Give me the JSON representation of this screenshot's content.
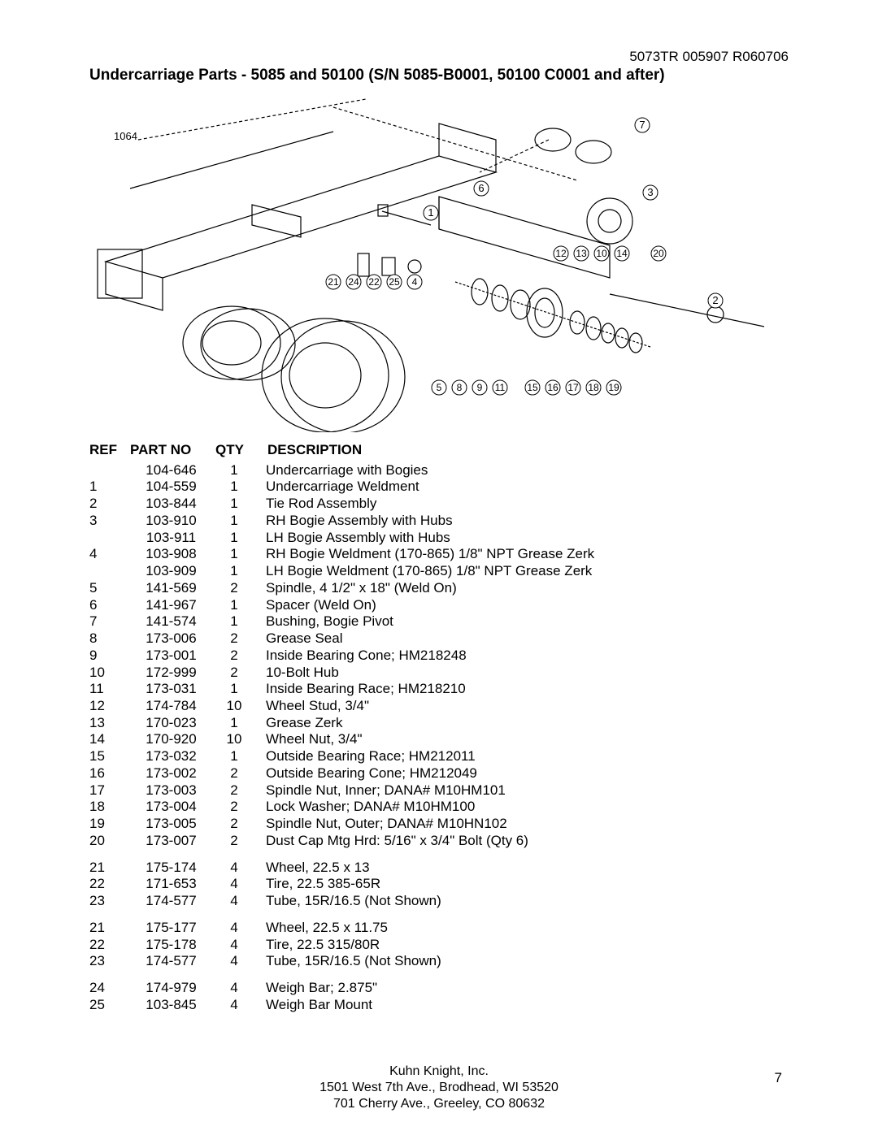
{
  "doc_code": "5073TR 005907 R060706",
  "title": "Undercarriage Parts -  5085 and 50100 (S/N 5085-B0001, 50100 C0001 and after)",
  "diagram_id": "1064",
  "headers": {
    "ref": "REF",
    "part": "PART NO",
    "qty": "QTY",
    "desc": "DESCRIPTION"
  },
  "groups": [
    [
      {
        "ref": "",
        "part": "104-646",
        "qty": "1",
        "desc": "Undercarriage  with Bogies"
      },
      {
        "ref": "1",
        "part": "104-559",
        "qty": "1",
        "desc": "Undercarriage Weldment"
      },
      {
        "ref": "2",
        "part": "103-844",
        "qty": "1",
        "desc": "Tie Rod Assembly"
      },
      {
        "ref": "3",
        "part": "103-910",
        "qty": "1",
        "desc": "RH Bogie Assembly with Hubs"
      },
      {
        "ref": "",
        "part": "103-911",
        "qty": "1",
        "desc": "LH Bogie Assembly with Hubs"
      },
      {
        "ref": "4",
        "part": "103-908",
        "qty": "1",
        "desc": "RH Bogie Weldment (170-865) 1/8\" NPT Grease Zerk"
      },
      {
        "ref": "",
        "part": "103-909",
        "qty": "1",
        "desc": "LH Bogie Weldment (170-865) 1/8\" NPT Grease Zerk"
      },
      {
        "ref": "5",
        "part": "141-569",
        "qty": "2",
        "desc": "Spindle, 4 1/2\" x 18\" (Weld On)"
      },
      {
        "ref": "6",
        "part": "141-967",
        "qty": "1",
        "desc": "Spacer (Weld On)"
      },
      {
        "ref": "7",
        "part": "141-574",
        "qty": "1",
        "desc": "Bushing, Bogie Pivot"
      },
      {
        "ref": "8",
        "part": "173-006",
        "qty": "2",
        "desc": "Grease Seal"
      },
      {
        "ref": "9",
        "part": "173-001",
        "qty": "2",
        "desc": "Inside Bearing Cone; HM218248"
      },
      {
        "ref": "10",
        "part": "172-999",
        "qty": "2",
        "desc": "10-Bolt Hub"
      },
      {
        "ref": "11",
        "part": "173-031",
        "qty": "1",
        "desc": "Inside Bearing Race; HM218210"
      },
      {
        "ref": "12",
        "part": "174-784",
        "qty": "10",
        "desc": "Wheel Stud, 3/4\""
      },
      {
        "ref": "13",
        "part": "170-023",
        "qty": "1",
        "desc": "Grease Zerk"
      },
      {
        "ref": "14",
        "part": "170-920",
        "qty": "10",
        "desc": "Wheel Nut, 3/4\""
      },
      {
        "ref": "15",
        "part": "173-032",
        "qty": "1",
        "desc": "Outside Bearing Race; HM212011"
      },
      {
        "ref": "16",
        "part": "173-002",
        "qty": "2",
        "desc": "Outside Bearing Cone; HM212049"
      },
      {
        "ref": "17",
        "part": "173-003",
        "qty": "2",
        "desc": "Spindle Nut, Inner; DANA# M10HM101"
      },
      {
        "ref": "18",
        "part": "173-004",
        "qty": "2",
        "desc": "Lock Washer; DANA# M10HM100"
      },
      {
        "ref": "19",
        "part": "173-005",
        "qty": "2",
        "desc": "Spindle Nut, Outer; DANA# M10HN102"
      },
      {
        "ref": "20",
        "part": "173-007",
        "qty": "2",
        "desc": "Dust Cap       Mtg Hrd: 5/16\" x 3/4\" Bolt (Qty 6)"
      }
    ],
    [
      {
        "ref": "21",
        "part": "175-174",
        "qty": "4",
        "desc": "Wheel, 22.5 x 13"
      },
      {
        "ref": "22",
        "part": "171-653",
        "qty": "4",
        "desc": "Tire, 22.5 385-65R"
      },
      {
        "ref": "23",
        "part": "174-577",
        "qty": "4",
        "desc": "Tube, 15R/16.5 (Not Shown)"
      }
    ],
    [
      {
        "ref": "21",
        "part": "175-177",
        "qty": "4",
        "desc": "Wheel, 22.5 x 11.75"
      },
      {
        "ref": "22",
        "part": "175-178",
        "qty": "4",
        "desc": "Tire, 22.5 315/80R"
      },
      {
        "ref": "23",
        "part": "174-577",
        "qty": "4",
        "desc": "Tube, 15R/16.5 (Not Shown)"
      }
    ],
    [
      {
        "ref": "24",
        "part": "174-979",
        "qty": "4",
        "desc": "Weigh Bar; 2.875\""
      },
      {
        "ref": "25",
        "part": "103-845",
        "qty": "4",
        "desc": "Weigh Bar Mount"
      }
    ]
  ],
  "footer": {
    "l1": "Kuhn Knight, Inc.",
    "l2": "1501 West 7th Ave., Brodhead, WI 53520",
    "l3": "701 Cherry Ave.,  Greeley, CO 80632"
  },
  "page_number": "7",
  "callouts_row1": [
    "12",
    "13",
    "10",
    "14",
    "20"
  ],
  "callouts_row2_left": [
    "21",
    "24",
    "22",
    "25",
    "4"
  ],
  "callouts_row3_left": [
    "5",
    "8",
    "9",
    "11"
  ],
  "callouts_row3_right": [
    "15",
    "16",
    "17",
    "18",
    "19"
  ],
  "callout_1": "1",
  "callout_2": "2",
  "callout_3": "3",
  "callout_6": "6",
  "callout_7": "7"
}
